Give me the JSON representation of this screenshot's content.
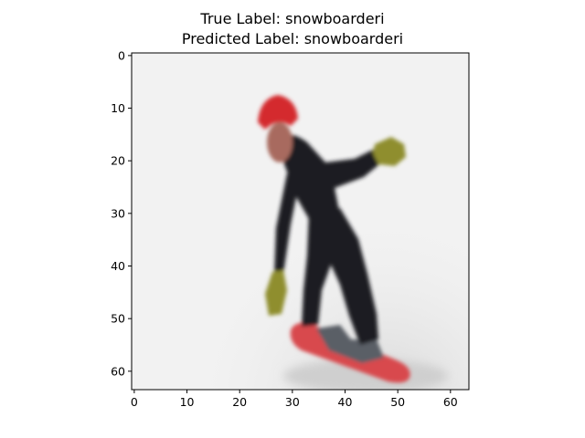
{
  "title": {
    "line1": "True Label: snowboarderi",
    "line2": "Predicted Label: snowboarderi"
  },
  "axes": {
    "x_ticks": [
      0,
      10,
      20,
      30,
      40,
      50,
      60
    ],
    "y_ticks": [
      0,
      10,
      20,
      30,
      40,
      50,
      60
    ],
    "pixel_extent": 64,
    "y_inverted": true
  },
  "image": {
    "subject": "snowboarder on snow slope",
    "background_color": "#f2f2f2",
    "colors": {
      "helmet": "#d42a2f",
      "suit": "#1c1f24",
      "face": "#a86a5e",
      "gloves": "#8f8e2e",
      "board": "#d8484e",
      "boots": "#5a5f66"
    }
  }
}
